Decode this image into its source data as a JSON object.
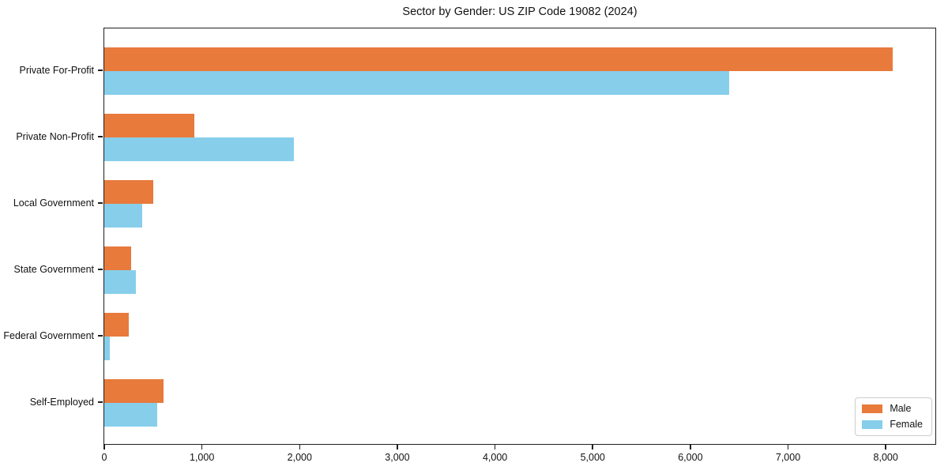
{
  "chart_data": {
    "type": "bar",
    "orientation": "horizontal",
    "title": "Sector by Gender: US ZIP Code 19082 (2024)",
    "xlabel": "",
    "ylabel": "",
    "categories": [
      "Private For-Profit",
      "Private Non-Profit",
      "Local Government",
      "State Government",
      "Federal Government",
      "Self-Employed"
    ],
    "series": [
      {
        "name": "Male",
        "color": "#E87A3C",
        "values": [
          8070,
          920,
          500,
          275,
          250,
          605
        ]
      },
      {
        "name": "Female",
        "color": "#87CEEB",
        "values": [
          6400,
          1940,
          390,
          320,
          60,
          540
        ]
      }
    ],
    "xlim": [
      0,
      8500
    ],
    "xticks": [
      0,
      1000,
      2000,
      3000,
      4000,
      5000,
      6000,
      7000,
      8000
    ],
    "xtick_labels": [
      "0",
      "1,000",
      "2,000",
      "3,000",
      "4,000",
      "5,000",
      "6,000",
      "7,000",
      "8,000"
    ],
    "grid": false,
    "legend": {
      "position": "lower right"
    }
  }
}
